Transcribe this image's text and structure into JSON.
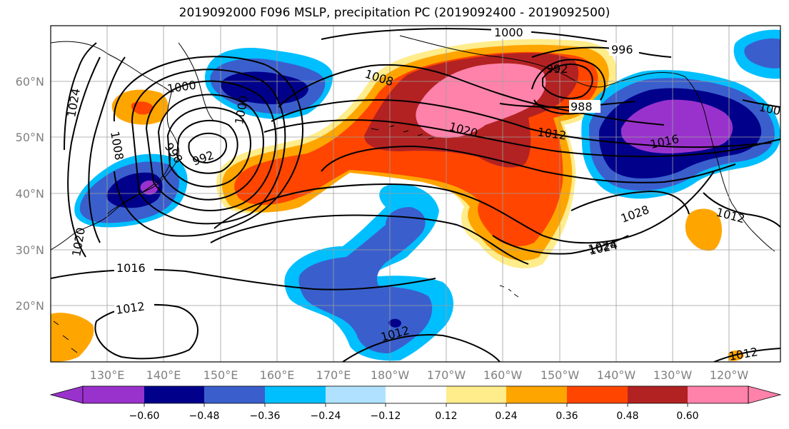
{
  "title": "2019092000 F096 MSLP, precipitation PC (2019092400 - 2019092500)",
  "latitude_labels": [
    "60°N",
    "50°N",
    "40°N",
    "30°N",
    "20°N"
  ],
  "longitude_labels": [
    "130°E",
    "140°E",
    "150°E",
    "160°E",
    "170°E",
    "180°W",
    "170°W",
    "160°W",
    "150°W",
    "140°W",
    "130°W",
    "120°W"
  ],
  "colorbar": {
    "ticks": [
      "−0.60",
      "−0.48",
      "−0.36",
      "−0.24",
      "−0.12",
      "0.12",
      "0.24",
      "0.36",
      "0.48",
      "0.60"
    ],
    "colors": [
      "#9932cc",
      "#00008b",
      "#3a5fcd",
      "#00bfff",
      "#b0e2ff",
      "#ffffff",
      "#ffec8b",
      "#ffa500",
      "#ff4500",
      "#b22222",
      "#ff82ab"
    ]
  },
  "contour_labels": [
    "1000",
    "996",
    "1008",
    "992",
    "988",
    "1012",
    "1020",
    "1016",
    "1024",
    "1000",
    "1008",
    "1024",
    "992",
    "1000",
    "998",
    "1020",
    "1016",
    "1012",
    "1012",
    "1028",
    "1024",
    "1012",
    "1012",
    "100"
  ]
}
